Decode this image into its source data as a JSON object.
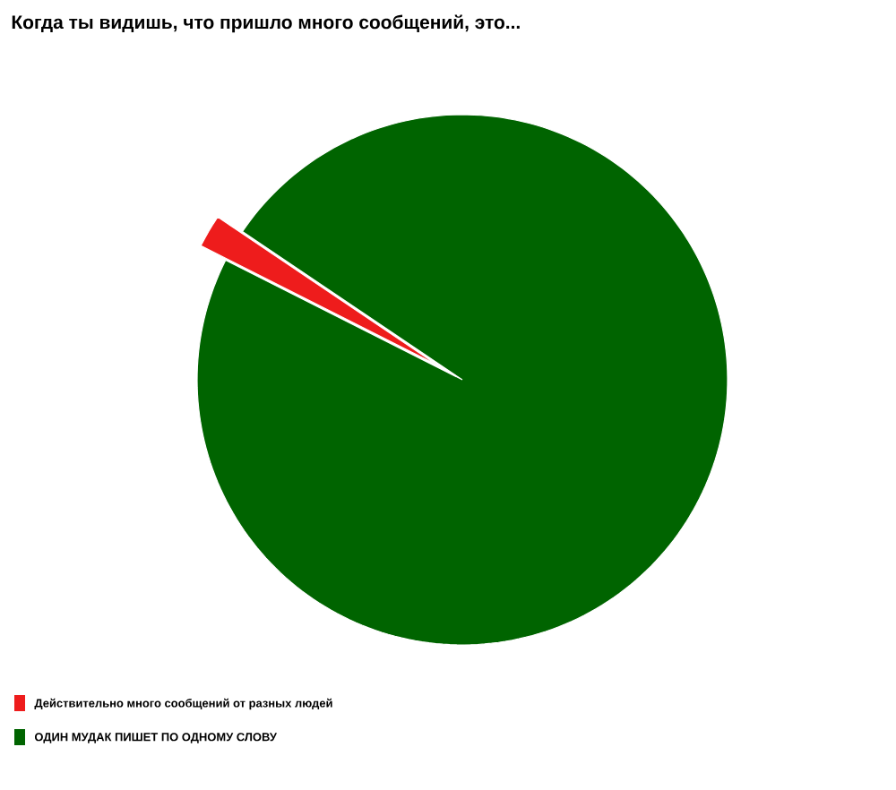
{
  "chart_data": {
    "type": "pie",
    "title": "Когда ты видишь, что пришло много сообщений, это...",
    "categories": [
      "Действительно много сообщений от разных людей",
      "ОДИН МУДАК ПИШЕТ ПО ОДНОМУ СЛОВУ"
    ],
    "values": [
      2,
      98
    ],
    "colors": [
      "#ee1c1c",
      "#006400"
    ],
    "legend": "bottom left"
  }
}
